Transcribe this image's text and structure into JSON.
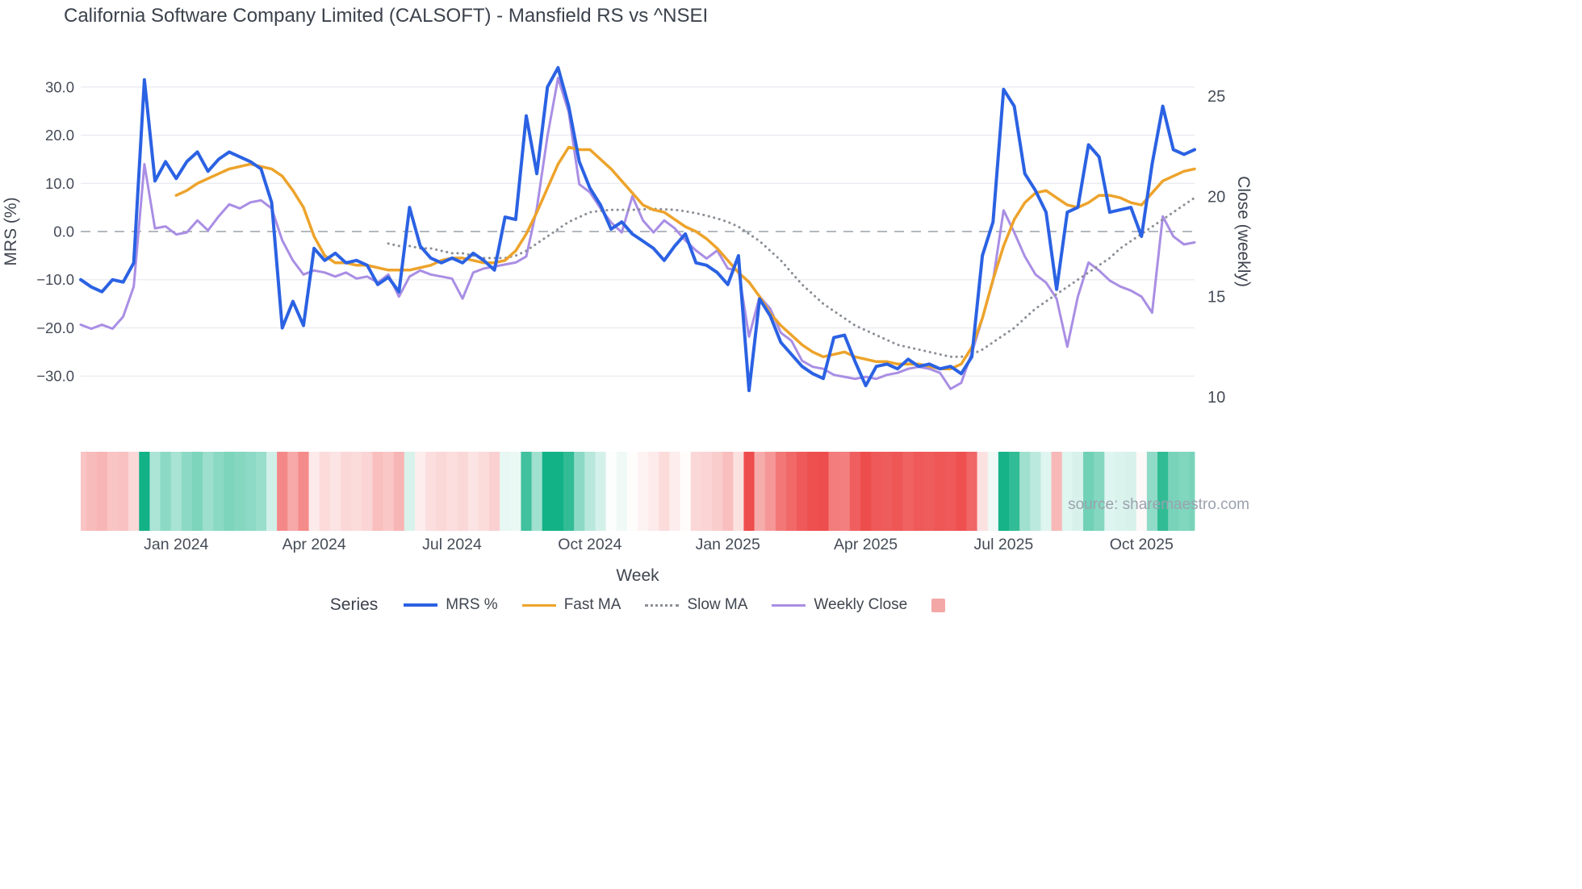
{
  "source": "source: sharemaestro.com",
  "colors": {
    "mrs_blue": "#2b62e3",
    "fast_ma_orange": "#eda32b",
    "slow_ma_gray": "#8b8f96",
    "weekly_close_purple": "#a98ee4",
    "grid": "#eaecf1",
    "zero_line": "#9aa0ab",
    "tick_text": "#454c57",
    "heat_green": "#12b286",
    "heat_red": "#ee4d4d",
    "legend_square_pink": "#f3a7a6"
  },
  "legend": {
    "title": "Series",
    "items": [
      {
        "label": "MRS %",
        "swatch": "line",
        "color": "#2b62e3",
        "thickness": 4
      },
      {
        "label": "Fast MA",
        "swatch": "line",
        "color": "#eda32b",
        "thickness": 3.5
      },
      {
        "label": "Slow MA",
        "swatch": "dotted-line",
        "color": "#8b8f96",
        "thickness": 3
      },
      {
        "label": "Weekly Close",
        "swatch": "line",
        "color": "#a98ee4",
        "thickness": 3
      },
      {
        "label": "",
        "swatch": "square",
        "color": "#f3a7a6"
      }
    ]
  },
  "chart_data": {
    "type": "line",
    "title": "California Software Company Limited (CALSOFT) - Mansfield RS vs ^NSEI",
    "xlabel": "Week",
    "ylabel_left": "MRS (%)",
    "ylabel_right": "Close (weekly)",
    "x_unit": "weekly observations, Nov 2023 - Nov 2025",
    "n_weeks": 106,
    "x_ticks": [
      {
        "week": 9,
        "label": "Jan 2024"
      },
      {
        "week": 22,
        "label": "Apr 2024"
      },
      {
        "week": 35,
        "label": "Jul 2024"
      },
      {
        "week": 48,
        "label": "Oct 2024"
      },
      {
        "week": 61,
        "label": "Jan 2025"
      },
      {
        "week": 74,
        "label": "Apr 2025"
      },
      {
        "week": 87,
        "label": "Jul 2025"
      },
      {
        "week": 100,
        "label": "Oct 2025"
      }
    ],
    "y_left": {
      "ticks": [
        30,
        20,
        10,
        0,
        -10,
        -20,
        -30
      ],
      "tick_labels": [
        "30.0",
        "20.0",
        "10.0",
        "0.0",
        "−10.0",
        "−20.0",
        "−30.0"
      ],
      "range": [
        -36,
        36
      ],
      "zero_line_dashed": true,
      "grid": true
    },
    "y_right": {
      "ticks": [
        25,
        20,
        15,
        10
      ],
      "tick_labels": [
        "25",
        "20",
        "15",
        "10"
      ],
      "range": [
        9,
        27
      ]
    },
    "series": [
      {
        "name": "MRS %",
        "axis": "left",
        "color": "#2b62e3",
        "width": 4,
        "dash": "solid",
        "values": [
          -10,
          -11.5,
          -12.5,
          -10,
          -10.5,
          -6.5,
          31.5,
          10.5,
          14.5,
          11,
          14.5,
          16.5,
          12.5,
          15,
          16.5,
          15.5,
          14.5,
          13,
          6,
          -20,
          -14.5,
          -19.5,
          -3.5,
          -6,
          -4.5,
          -6.5,
          -6,
          -7,
          -11,
          -9.5,
          -12.5,
          5,
          -3,
          -5.5,
          -6.5,
          -5.5,
          -6.5,
          -4.5,
          -6,
          -8,
          3,
          2.5,
          24,
          12,
          30,
          34,
          26,
          14.5,
          9,
          5.5,
          0.5,
          2,
          -0.5,
          -2,
          -3.5,
          -6,
          -3,
          -0.5,
          -6.5,
          -7,
          -8.5,
          -11,
          -5,
          -33,
          -14,
          -17.5,
          -23,
          -25.5,
          -28,
          -29.5,
          -30.5,
          -22,
          -21.5,
          -27,
          -32,
          -28,
          -27.5,
          -28.5,
          -26.5,
          -28,
          -27.5,
          -28.5,
          -28,
          -29.5,
          -26,
          -5,
          2,
          29.5,
          26,
          12,
          8.5,
          4,
          -12,
          4,
          5,
          18,
          15.5,
          4,
          4.5,
          5,
          -1,
          14,
          26,
          17,
          16,
          17
        ]
      },
      {
        "name": "Fast MA",
        "axis": "left",
        "color": "#eda32b",
        "width": 3.5,
        "dash": "solid",
        "values": [
          null,
          null,
          null,
          null,
          null,
          null,
          null,
          null,
          null,
          7.5,
          8.5,
          10,
          11,
          12,
          13,
          13.5,
          14,
          13.5,
          13,
          11.5,
          8.5,
          5,
          -1,
          -5,
          -6.5,
          -6.5,
          -7,
          -7,
          -7.5,
          -8,
          -8,
          -8,
          -7.5,
          -7,
          -6,
          -5.5,
          -5.5,
          -6,
          -6.5,
          -6.5,
          -6,
          -4,
          -0.5,
          4,
          9,
          14,
          17.5,
          17,
          17,
          15,
          13,
          10.5,
          8,
          5.5,
          4.5,
          4,
          2.5,
          1,
          0,
          -1.5,
          -3.5,
          -6,
          -8.5,
          -10.5,
          -13.5,
          -17,
          -19.5,
          -21.5,
          -23.5,
          -25,
          -26,
          -25.5,
          -25,
          -26,
          -26.5,
          -27,
          -27,
          -27.5,
          -27.5,
          -27.5,
          -28,
          -28.5,
          -28.5,
          -27.5,
          -24,
          -18,
          -10,
          -3,
          2.5,
          6,
          8,
          8.5,
          7,
          5.5,
          5,
          6,
          7.5,
          7.5,
          7,
          6,
          5.5,
          8,
          10.5,
          11.5,
          12.5,
          13
        ]
      },
      {
        "name": "Slow MA",
        "axis": "left",
        "color": "#8b8f96",
        "width": 3,
        "dash": "dot",
        "values": [
          null,
          null,
          null,
          null,
          null,
          null,
          null,
          null,
          null,
          null,
          null,
          null,
          null,
          null,
          null,
          null,
          null,
          null,
          null,
          null,
          null,
          null,
          null,
          null,
          null,
          null,
          null,
          null,
          null,
          -2.5,
          -3,
          -3,
          -3.5,
          -3.5,
          -4,
          -4.5,
          -4.5,
          -5,
          -5.5,
          -5.5,
          -5.5,
          -5,
          -4,
          -2.5,
          -1,
          0.5,
          2,
          3,
          4,
          4.3,
          4.5,
          4.5,
          4.5,
          4.6,
          4.7,
          4.6,
          4.5,
          4.2,
          3.8,
          3.3,
          2.7,
          2,
          1,
          -0.5,
          -2,
          -4,
          -6,
          -8.5,
          -11,
          -13,
          -15,
          -16.5,
          -18,
          -19.5,
          -20.5,
          -21.5,
          -22.5,
          -23.5,
          -24,
          -24.5,
          -25,
          -25.5,
          -26,
          -26,
          -25.5,
          -24.5,
          -23,
          -21.5,
          -20,
          -18,
          -16,
          -14.5,
          -13,
          -11.5,
          -10,
          -8.5,
          -7,
          -5.5,
          -3.5,
          -2,
          -0.5,
          1,
          2.5,
          4,
          5.5,
          7
        ]
      },
      {
        "name": "Weekly Close",
        "axis": "right",
        "color": "#a98ee4",
        "width": 3,
        "dash": "solid",
        "values": [
          13.6,
          13.4,
          13.6,
          13.4,
          14,
          15.5,
          21.6,
          18.4,
          18.5,
          18.1,
          18.2,
          18.8,
          18.3,
          19,
          19.6,
          19.4,
          19.7,
          19.8,
          19.4,
          17.8,
          16.8,
          16.1,
          16.3,
          16.2,
          16,
          16.2,
          15.9,
          16,
          15.7,
          16.1,
          15,
          16,
          16.3,
          16.1,
          16,
          15.9,
          14.9,
          16.2,
          16.4,
          16.5,
          16.6,
          16.7,
          17,
          19.4,
          23,
          25.9,
          24.2,
          20.6,
          20.2,
          19.4,
          18.7,
          18.2,
          20,
          18.8,
          18.2,
          18.8,
          18.4,
          17.8,
          17.3,
          16.9,
          17.3,
          16.4,
          16.3,
          13,
          15,
          14.4,
          13.2,
          12.8,
          11.8,
          11.5,
          11.4,
          11.1,
          11,
          10.9,
          11,
          10.9,
          11.1,
          11.2,
          11.4,
          11.5,
          11.4,
          11.2,
          10.4,
          10.7,
          12.2,
          13.9,
          15.8,
          19.3,
          18.2,
          17,
          16.1,
          15.7,
          14.9,
          12.5,
          15,
          16.7,
          16.3,
          15.8,
          15.5,
          15.3,
          15,
          14.2,
          19,
          18,
          17.6,
          17.7
        ]
      }
    ],
    "heatmap_strip": {
      "name": "weekly strength heat strip",
      "derived_from": "MRS %",
      "green": "#12b286",
      "red": "#ee4d4d",
      "note": "green intensity for positive MRS, red intensity for negative MRS, white near zero"
    }
  }
}
